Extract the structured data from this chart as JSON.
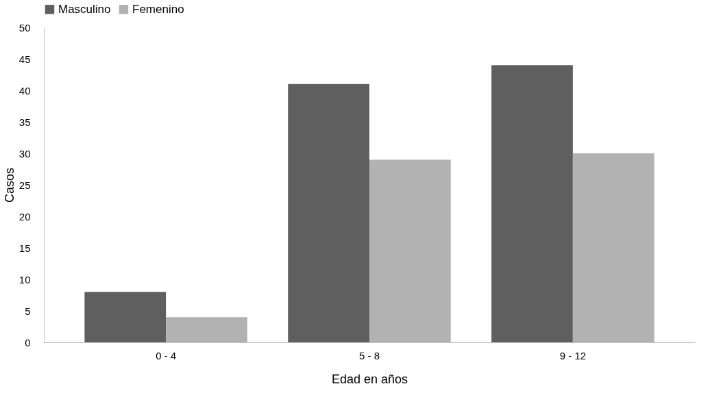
{
  "chart_data": {
    "type": "bar",
    "xlabel": "Edad en años",
    "ylabel": "Casos",
    "categories": [
      "0 - 4",
      "5 - 8",
      "9 - 12"
    ],
    "series": [
      {
        "name": "Masculino",
        "color": "#5f5f5f",
        "values": [
          8,
          41,
          44
        ]
      },
      {
        "name": "Femenino",
        "color": "#b2b2b2",
        "values": [
          4,
          29,
          30
        ]
      }
    ],
    "ylim": [
      0,
      50
    ],
    "yticks": [
      0,
      5,
      10,
      15,
      20,
      25,
      30,
      35,
      40,
      45,
      50
    ],
    "grid": false,
    "legend": "top"
  }
}
